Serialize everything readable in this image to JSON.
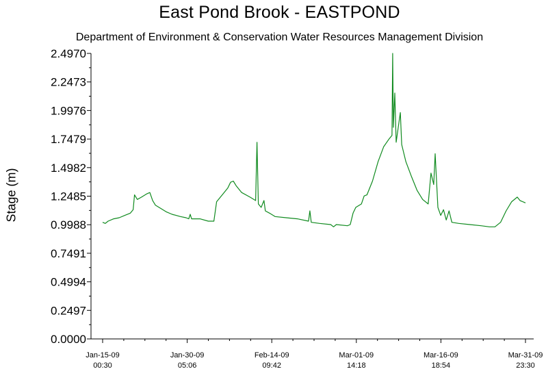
{
  "chart_data": {
    "type": "line",
    "title": "East Pond Brook - EASTPOND",
    "subtitle": "Department of Environment & Conservation Water Resources Management Division",
    "ylabel": "Stage (m)",
    "xlabel": "",
    "ylim": [
      0.0,
      2.497
    ],
    "y_ticks": [
      "0.0000",
      "0.2497",
      "0.4994",
      "0.7491",
      "0.9988",
      "1.2485",
      "1.4982",
      "1.7479",
      "1.9976",
      "2.2473",
      "2.4970"
    ],
    "x_ticks": [
      {
        "date": "Jan-15-09",
        "time": "00:30"
      },
      {
        "date": "Jan-30-09",
        "time": "05:06"
      },
      {
        "date": "Feb-14-09",
        "time": "09:42"
      },
      {
        "date": "Mar-01-09",
        "time": "14:18"
      },
      {
        "date": "Mar-16-09",
        "time": "18:54"
      },
      {
        "date": "Mar-31-09",
        "time": "23:30"
      }
    ],
    "grid": false,
    "line_color": "#0f8a1e",
    "series": [
      {
        "points": [
          [
            "Jan-15-09 00:30",
            1.02
          ],
          [
            "Jan-15-09 12:00",
            1.01
          ],
          [
            "Jan-16-09 00:00",
            1.03
          ],
          [
            "Jan-17-09 00:00",
            1.05
          ],
          [
            "Jan-18-09 00:00",
            1.06
          ],
          [
            "Jan-19-09 00:00",
            1.08
          ],
          [
            "Jan-20-09 00:00",
            1.1
          ],
          [
            "Jan-20-09 12:00",
            1.13
          ],
          [
            "Jan-20-09 18:00",
            1.26
          ],
          [
            "Jan-21-09 06:00",
            1.22
          ],
          [
            "Jan-22-09 00:00",
            1.24
          ],
          [
            "Jan-23-09 00:00",
            1.27
          ],
          [
            "Jan-23-09 12:00",
            1.28
          ],
          [
            "Jan-24-09 00:00",
            1.21
          ],
          [
            "Jan-24-09 12:00",
            1.17
          ],
          [
            "Jan-25-09 12:00",
            1.14
          ],
          [
            "Jan-26-09 12:00",
            1.11
          ],
          [
            "Jan-27-09 12:00",
            1.09
          ],
          [
            "Jan-29-09 00:00",
            1.07
          ],
          [
            "Jan-30-09 00:00",
            1.06
          ],
          [
            "Jan-30-09 12:00",
            1.05
          ],
          [
            "Jan-30-09 18:00",
            1.09
          ],
          [
            "Jan-31-09 00:00",
            1.05
          ],
          [
            "Feb-01-09 12:00",
            1.05
          ],
          [
            "Feb-03-09 00:00",
            1.03
          ],
          [
            "Feb-04-09 00:00",
            1.03
          ],
          [
            "Feb-04-09 12:00",
            1.2
          ],
          [
            "Feb-05-09 12:00",
            1.26
          ],
          [
            "Feb-06-09 12:00",
            1.32
          ],
          [
            "Feb-07-09 00:00",
            1.37
          ],
          [
            "Feb-07-09 12:00",
            1.38
          ],
          [
            "Feb-08-09 00:00",
            1.34
          ],
          [
            "Feb-09-09 00:00",
            1.28
          ],
          [
            "Feb-10-09 12:00",
            1.24
          ],
          [
            "Feb-11-09 12:00",
            1.21
          ],
          [
            "Feb-11-09 18:00",
            1.72
          ],
          [
            "Feb-12-09 00:00",
            1.18
          ],
          [
            "Feb-12-09 12:00",
            1.15
          ],
          [
            "Feb-13-09 00:00",
            1.21
          ],
          [
            "Feb-13-09 06:00",
            1.12
          ],
          [
            "Feb-14-09 00:00",
            1.1
          ],
          [
            "Feb-15-09 00:00",
            1.07
          ],
          [
            "Feb-17-09 00:00",
            1.06
          ],
          [
            "Feb-19-09 00:00",
            1.05
          ],
          [
            "Feb-21-09 00:00",
            1.03
          ],
          [
            "Feb-21-09 06:00",
            1.12
          ],
          [
            "Feb-21-09 12:00",
            1.02
          ],
          [
            "Feb-23-09 00:00",
            1.01
          ],
          [
            "Feb-25-09 00:00",
            1.0
          ],
          [
            "Feb-25-09 12:00",
            0.98
          ],
          [
            "Feb-26-09 00:00",
            1.0
          ],
          [
            "Feb-28-09 00:00",
            0.99
          ],
          [
            "Feb-28-09 12:00",
            1.0
          ],
          [
            "Mar-01-09 00:00",
            1.1
          ],
          [
            "Mar-01-09 12:00",
            1.15
          ],
          [
            "Mar-02-09 12:00",
            1.18
          ],
          [
            "Mar-03-09 00:00",
            1.25
          ],
          [
            "Mar-03-09 12:00",
            1.26
          ],
          [
            "Mar-04-09 12:00",
            1.38
          ],
          [
            "Mar-05-09 12:00",
            1.55
          ],
          [
            "Mar-06-09 12:00",
            1.68
          ],
          [
            "Mar-07-09 12:00",
            1.75
          ],
          [
            "Mar-08-09 00:00",
            1.78
          ],
          [
            "Mar-08-09 03:00",
            2.497
          ],
          [
            "Mar-08-09 06:00",
            1.85
          ],
          [
            "Mar-08-09 12:00",
            2.15
          ],
          [
            "Mar-08-09 18:00",
            1.72
          ],
          [
            "Mar-09-09 12:00",
            1.98
          ],
          [
            "Mar-09-09 18:00",
            1.7
          ],
          [
            "Mar-10-09 12:00",
            1.55
          ],
          [
            "Mar-11-09 12:00",
            1.42
          ],
          [
            "Mar-12-09 12:00",
            1.3
          ],
          [
            "Mar-13-09 12:00",
            1.22
          ],
          [
            "Mar-14-09 12:00",
            1.18
          ],
          [
            "Mar-15-09 00:00",
            1.45
          ],
          [
            "Mar-15-09 12:00",
            1.35
          ],
          [
            "Mar-15-09 18:00",
            1.62
          ],
          [
            "Mar-16-09 06:00",
            1.15
          ],
          [
            "Mar-16-09 18:00",
            1.08
          ],
          [
            "Mar-17-09 06:00",
            1.13
          ],
          [
            "Mar-17-09 18:00",
            1.04
          ],
          [
            "Mar-18-09 06:00",
            1.12
          ],
          [
            "Mar-18-09 18:00",
            1.02
          ],
          [
            "Mar-20-09 00:00",
            1.01
          ],
          [
            "Mar-22-09 00:00",
            1.0
          ],
          [
            "Mar-24-09 00:00",
            0.99
          ],
          [
            "Mar-25-09 12:00",
            0.98
          ],
          [
            "Mar-26-09 12:00",
            0.98
          ],
          [
            "Mar-27-09 12:00",
            1.02
          ],
          [
            "Mar-28-09 12:00",
            1.12
          ],
          [
            "Mar-29-09 12:00",
            1.2
          ],
          [
            "Mar-30-09 12:00",
            1.24
          ],
          [
            "Mar-31-09 00:00",
            1.21
          ],
          [
            "Mar-31-09 23:30",
            1.19
          ]
        ]
      }
    ]
  }
}
